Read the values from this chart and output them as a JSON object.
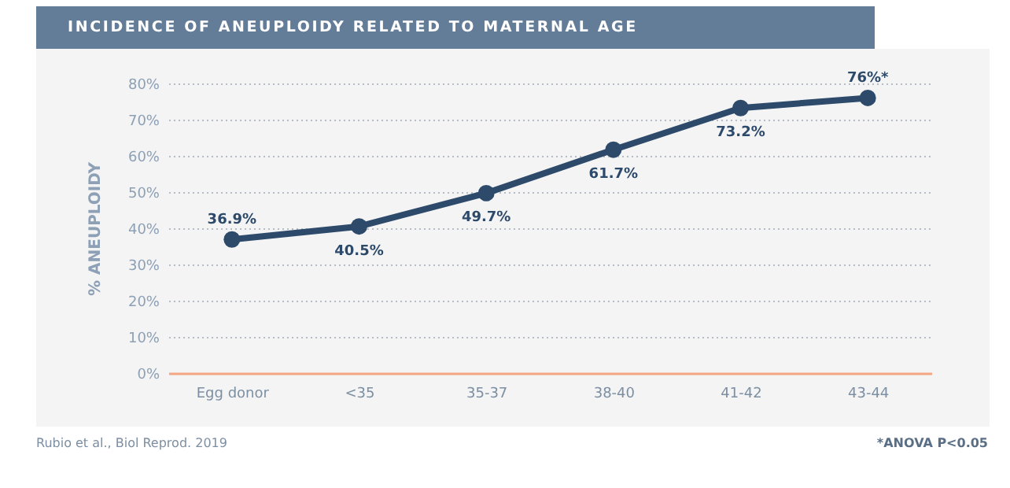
{
  "chart_data": {
    "type": "line",
    "title": "INCIDENCE OF ANEUPLOIDY RELATED TO MATERNAL AGE",
    "ylabel": "% ANEUPLOIDY",
    "categories": [
      "Egg donor",
      "<35",
      "35-37",
      "38-40",
      "41-42",
      "43-44"
    ],
    "series": [
      {
        "color": "#2d4a6b",
        "values": [
          36.9,
          40.5,
          49.7,
          61.7,
          73.2,
          76
        ],
        "value_labels": [
          "36.9%",
          "40.5%",
          "49.7%",
          "61.7%",
          "73.2%",
          "76%*"
        ]
      }
    ],
    "ylim": [
      0,
      80
    ],
    "yticks": [
      {
        "value": 0,
        "label": "0%"
      },
      {
        "value": 10,
        "label": "10%"
      },
      {
        "value": 20,
        "label": "20%"
      },
      {
        "value": 30,
        "label": "30%"
      },
      {
        "value": 40,
        "label": "40%"
      },
      {
        "value": 50,
        "label": "50%"
      },
      {
        "value": 60,
        "label": "60%"
      },
      {
        "value": 70,
        "label": "70%"
      },
      {
        "value": 80,
        "label": "80%"
      }
    ],
    "grid": "y",
    "marker": "circle",
    "line_style": "solid",
    "annotations": [
      "Rubio et al., Biol Reprod. 2019",
      "*ANOVA P<0.05"
    ]
  }
}
